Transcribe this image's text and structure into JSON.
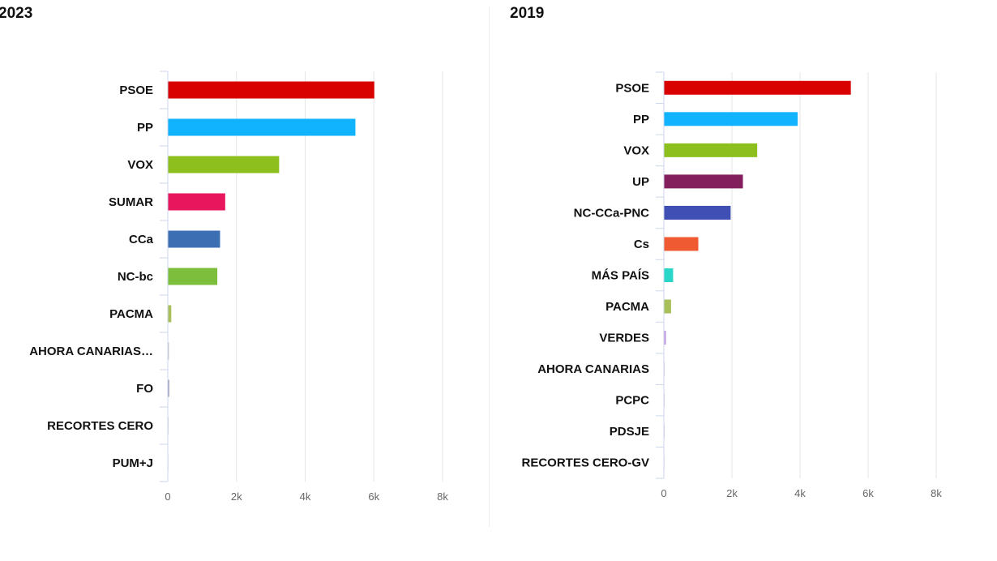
{
  "chart_data": [
    {
      "type": "bar",
      "orientation": "horizontal",
      "title": "2023",
      "categories": [
        "PSOE",
        "PP",
        "VOX",
        "SUMAR",
        "CCa",
        "NC-bc",
        "PACMA",
        "AHORA CANARIAS…",
        "FO",
        "RECORTES CERO",
        "PUM+J"
      ],
      "values": [
        6000,
        5450,
        3230,
        1660,
        1510,
        1430,
        90,
        20,
        30,
        10,
        5
      ],
      "colors": [
        "#d90000",
        "#11b3ff",
        "#8dbf1f",
        "#e8175d",
        "#3c6eb4",
        "#7dbf3c",
        "#a8bf5a",
        "#bcbcbc",
        "#9a9ab8",
        "#cccccc",
        "#cccccc"
      ],
      "xlim": [
        0,
        8000
      ],
      "xticks": [
        0,
        2000,
        4000,
        6000,
        8000
      ],
      "xtick_labels": [
        "0",
        "2k",
        "4k",
        "6k",
        "8k"
      ],
      "grid": true
    },
    {
      "type": "bar",
      "orientation": "horizontal",
      "title": "2019",
      "categories": [
        "PSOE",
        "PP",
        "VOX",
        "UP",
        "NC-CCa-PNC",
        "Cs",
        "MÁS PAÍS",
        "PACMA",
        "VERDES",
        "AHORA CANARIAS",
        "PCPC",
        "PDSJE",
        "RECORTES CERO-GV"
      ],
      "values": [
        5480,
        3920,
        2730,
        2310,
        1950,
        1000,
        260,
        200,
        50,
        10,
        10,
        10,
        5
      ],
      "colors": [
        "#d90000",
        "#11b3ff",
        "#8dbf1f",
        "#841f5e",
        "#3f4fb4",
        "#f05a32",
        "#2ad6c8",
        "#a8bf5a",
        "#c39be0",
        "#cccccc",
        "#cccccc",
        "#cccccc",
        "#cccccc"
      ],
      "xlim": [
        0,
        8000
      ],
      "xticks": [
        0,
        2000,
        4000,
        6000,
        8000
      ],
      "xtick_labels": [
        "0",
        "2k",
        "4k",
        "6k",
        "8k"
      ],
      "grid": true
    }
  ]
}
